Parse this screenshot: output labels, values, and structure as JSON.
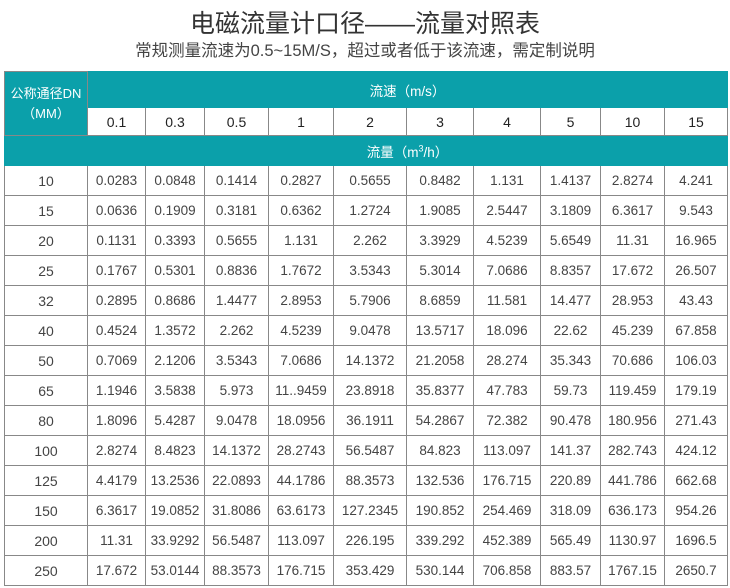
{
  "title": "电磁流量计口径——流量对照表",
  "subtitle": "常规测量流速为0.5~15M/S，超过或者低于该流速，需定制说明",
  "header": {
    "dn_label_line1": "公称通径DN",
    "dn_label_line2": "（MM）",
    "speed_label": "流速（m/s）",
    "flow_label_prefix": "流量（m",
    "flow_label_sup": "3",
    "flow_label_suffix": "/h）",
    "speeds": [
      "0.1",
      "0.3",
      "0.5",
      "1",
      "2",
      "3",
      "4",
      "5",
      "10",
      "15"
    ]
  },
  "colors": {
    "header_bg": "#0ba0aa",
    "header_text": "#ffffff"
  },
  "rows": [
    {
      "dn": "10",
      "values": [
        "0.0283",
        "0.0848",
        "0.1414",
        "0.2827",
        "0.5655",
        "0.8482",
        "1.131",
        "1.4137",
        "2.8274",
        "4.241"
      ]
    },
    {
      "dn": "15",
      "values": [
        "0.0636",
        "0.1909",
        "0.3181",
        "0.6362",
        "1.2724",
        "1.9085",
        "2.5447",
        "3.1809",
        "6.3617",
        "9.543"
      ]
    },
    {
      "dn": "20",
      "values": [
        "0.1131",
        "0.3393",
        "0.5655",
        "1.131",
        "2.262",
        "3.3929",
        "4.5239",
        "5.6549",
        "11.31",
        "16.965"
      ]
    },
    {
      "dn": "25",
      "values": [
        "0.1767",
        "0.5301",
        "0.8836",
        "1.7672",
        "3.5343",
        "5.3014",
        "7.0686",
        "8.8357",
        "17.672",
        "26.507"
      ]
    },
    {
      "dn": "32",
      "values": [
        "0.2895",
        "0.8686",
        "1.4477",
        "2.8953",
        "5.7906",
        "8.6859",
        "11.581",
        "14.477",
        "28.953",
        "43.43"
      ]
    },
    {
      "dn": "40",
      "values": [
        "0.4524",
        "1.3572",
        "2.262",
        "4.5239",
        "9.0478",
        "13.5717",
        "18.096",
        "22.62",
        "45.239",
        "67.858"
      ]
    },
    {
      "dn": "50",
      "values": [
        "0.7069",
        "2.1206",
        "3.5343",
        "7.0686",
        "14.1372",
        "21.2058",
        "28.274",
        "35.343",
        "70.686",
        "106.03"
      ]
    },
    {
      "dn": "65",
      "values": [
        "1.1946",
        "3.5838",
        "5.973",
        "11..9459",
        "23.8918",
        "35.8377",
        "47.783",
        "59.73",
        "119.459",
        "179.19"
      ]
    },
    {
      "dn": "80",
      "values": [
        "1.8096",
        "5.4287",
        "9.0478",
        "18.0956",
        "36.1911",
        "54.2867",
        "72.382",
        "90.478",
        "180.956",
        "271.43"
      ]
    },
    {
      "dn": "100",
      "values": [
        "2.8274",
        "8.4823",
        "14.1372",
        "28.2743",
        "56.5487",
        "84.823",
        "113.097",
        "141.37",
        "282.743",
        "424.12"
      ]
    },
    {
      "dn": "125",
      "values": [
        "4.4179",
        "13.2536",
        "22.0893",
        "44.1786",
        "88.3573",
        "132.536",
        "176.715",
        "220.89",
        "441.786",
        "662.68"
      ]
    },
    {
      "dn": "150",
      "values": [
        "6.3617",
        "19.0852",
        "31.8086",
        "63.6173",
        "127.2345",
        "190.852",
        "254.469",
        "318.09",
        "636.173",
        "954.26"
      ]
    },
    {
      "dn": "200",
      "values": [
        "11.31",
        "33.9292",
        "56.5487",
        "113.097",
        "226.195",
        "339.292",
        "452.389",
        "565.49",
        "1130.97",
        "1696.5"
      ]
    },
    {
      "dn": "250",
      "values": [
        "17.672",
        "53.0144",
        "88.3573",
        "176.715",
        "353.429",
        "530.144",
        "706.858",
        "883.57",
        "1767.15",
        "2650.7"
      ]
    }
  ]
}
